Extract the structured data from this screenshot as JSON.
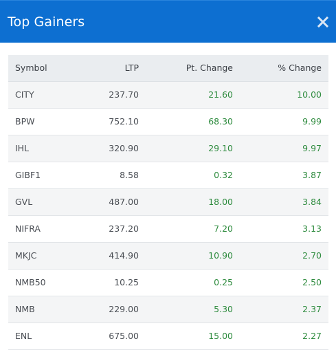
{
  "modal": {
    "title": "Top Gainers",
    "close_icon": "close-icon"
  },
  "colors": {
    "header_bg": "#0d6fd1",
    "gain_text": "#2e8b3e"
  },
  "table": {
    "headers": [
      "Symbol",
      "LTP",
      "Pt. Change",
      "% Change"
    ],
    "rows": [
      {
        "symbol": "CITY",
        "ltp": "237.70",
        "pt_change": "21.60",
        "pct_change": "10.00"
      },
      {
        "symbol": "BPW",
        "ltp": "752.10",
        "pt_change": "68.30",
        "pct_change": "9.99"
      },
      {
        "symbol": "IHL",
        "ltp": "320.90",
        "pt_change": "29.10",
        "pct_change": "9.97"
      },
      {
        "symbol": "GIBF1",
        "ltp": "8.58",
        "pt_change": "0.32",
        "pct_change": "3.87"
      },
      {
        "symbol": "GVL",
        "ltp": "487.00",
        "pt_change": "18.00",
        "pct_change": "3.84"
      },
      {
        "symbol": "NIFRA",
        "ltp": "237.20",
        "pt_change": "7.20",
        "pct_change": "3.13"
      },
      {
        "symbol": "MKJC",
        "ltp": "414.90",
        "pt_change": "10.90",
        "pct_change": "2.70"
      },
      {
        "symbol": "NMB50",
        "ltp": "10.25",
        "pt_change": "0.25",
        "pct_change": "2.50"
      },
      {
        "symbol": "NMB",
        "ltp": "229.00",
        "pt_change": "5.30",
        "pct_change": "2.37"
      },
      {
        "symbol": "ENL",
        "ltp": "675.00",
        "pt_change": "15.00",
        "pct_change": "2.27"
      }
    ]
  }
}
